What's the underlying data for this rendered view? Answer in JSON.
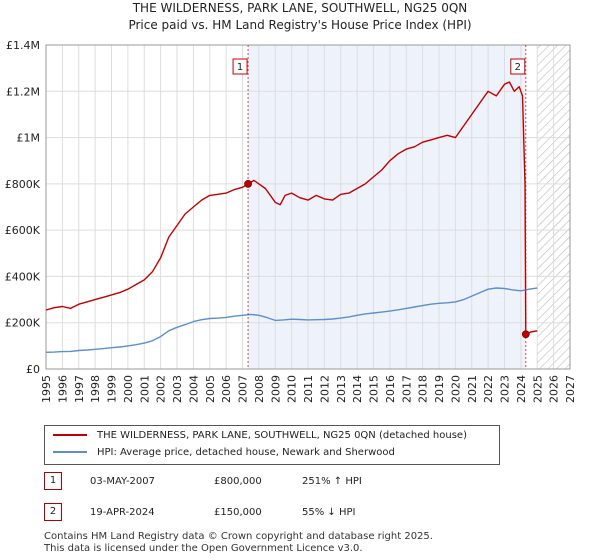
{
  "title_line1": "THE WILDERNESS, PARK LANE, SOUTHWELL, NG25 0QN",
  "title_line2": "Price paid vs. HM Land Registry's House Price Index (HPI)",
  "colors": {
    "property": "#c00000",
    "hpi": "#5b8fcf",
    "shade": "#eef2fb",
    "grid": "#dddddd"
  },
  "chart_data": {
    "type": "line",
    "title": "THE WILDERNESS, PARK LANE, SOUTHWELL, NG25 0QN",
    "subtitle": "Price paid vs. HM Land Registry's House Price Index (HPI)",
    "xlim": [
      1995,
      2027
    ],
    "ylim": [
      0,
      1400000
    ],
    "x_ticks": [
      1995,
      1996,
      1997,
      1998,
      1999,
      2000,
      2001,
      2002,
      2003,
      2004,
      2005,
      2006,
      2007,
      2008,
      2009,
      2010,
      2011,
      2012,
      2013,
      2014,
      2015,
      2016,
      2017,
      2018,
      2019,
      2020,
      2021,
      2022,
      2023,
      2024,
      2025,
      2026,
      2027
    ],
    "y_ticks": [
      {
        "value": 0,
        "label": "£0"
      },
      {
        "value": 200000,
        "label": "£200K"
      },
      {
        "value": 400000,
        "label": "£400K"
      },
      {
        "value": 600000,
        "label": "£600K"
      },
      {
        "value": 800000,
        "label": "£800K"
      },
      {
        "value": 1000000,
        "label": "£1M"
      },
      {
        "value": 1200000,
        "label": "£1.2M"
      },
      {
        "value": 1400000,
        "label": "£1.4M"
      }
    ],
    "grid": true,
    "shaded_region": [
      2007.34,
      2024.3
    ],
    "hatched_region": [
      2025.0,
      2027
    ],
    "series": [
      {
        "name": "THE WILDERNESS, PARK LANE, SOUTHWELL, NG25 0QN (detached house)",
        "x": [
          1995.0,
          1995.5,
          1996.0,
          1996.5,
          1997.0,
          1997.5,
          1998.0,
          1998.5,
          1999.0,
          1999.5,
          2000.0,
          2000.5,
          2001.0,
          2001.5,
          2002.0,
          2002.5,
          2003.0,
          2003.5,
          2004.0,
          2004.5,
          2005.0,
          2005.5,
          2006.0,
          2006.5,
          2007.0,
          2007.34,
          2007.7,
          2008.0,
          2008.4,
          2008.8,
          2009.0,
          2009.3,
          2009.6,
          2010.0,
          2010.5,
          2011.0,
          2011.5,
          2012.0,
          2012.5,
          2013.0,
          2013.5,
          2014.0,
          2014.5,
          2015.0,
          2015.5,
          2016.0,
          2016.5,
          2017.0,
          2017.5,
          2018.0,
          2018.5,
          2019.0,
          2019.5,
          2020.0,
          2020.5,
          2021.0,
          2021.5,
          2022.0,
          2022.5,
          2023.0,
          2023.3,
          2023.6,
          2023.9,
          2024.1,
          2024.25,
          2024.3,
          2024.6,
          2025.0
        ],
        "values": [
          255000,
          265000,
          270000,
          262000,
          280000,
          290000,
          300000,
          310000,
          320000,
          330000,
          345000,
          365000,
          385000,
          420000,
          480000,
          570000,
          620000,
          670000,
          700000,
          730000,
          750000,
          755000,
          760000,
          775000,
          785000,
          800000,
          815000,
          800000,
          780000,
          740000,
          720000,
          710000,
          750000,
          760000,
          740000,
          730000,
          750000,
          735000,
          730000,
          755000,
          760000,
          780000,
          800000,
          830000,
          860000,
          900000,
          930000,
          950000,
          960000,
          980000,
          990000,
          1000000,
          1010000,
          1000000,
          1050000,
          1100000,
          1150000,
          1200000,
          1180000,
          1230000,
          1240000,
          1200000,
          1220000,
          1180000,
          800000,
          150000,
          160000,
          165000
        ]
      },
      {
        "name": "HPI: Average price, detached house, Newark and Sherwood",
        "x": [
          1995.0,
          1995.5,
          1996.0,
          1996.5,
          1997.0,
          1997.5,
          1998.0,
          1998.5,
          1999.0,
          1999.5,
          2000.0,
          2000.5,
          2001.0,
          2001.5,
          2002.0,
          2002.5,
          2003.0,
          2003.5,
          2004.0,
          2004.5,
          2005.0,
          2005.5,
          2006.0,
          2006.5,
          2007.0,
          2007.5,
          2008.0,
          2008.5,
          2009.0,
          2009.5,
          2010.0,
          2010.5,
          2011.0,
          2011.5,
          2012.0,
          2012.5,
          2013.0,
          2013.5,
          2014.0,
          2014.5,
          2015.0,
          2015.5,
          2016.0,
          2016.5,
          2017.0,
          2017.5,
          2018.0,
          2018.5,
          2019.0,
          2019.5,
          2020.0,
          2020.5,
          2021.0,
          2021.5,
          2022.0,
          2022.5,
          2023.0,
          2023.5,
          2024.0,
          2024.5,
          2025.0
        ],
        "values": [
          72000,
          73000,
          75000,
          76000,
          80000,
          82000,
          85000,
          88000,
          92000,
          95000,
          100000,
          105000,
          112000,
          122000,
          140000,
          165000,
          180000,
          192000,
          205000,
          213000,
          218000,
          220000,
          223000,
          228000,
          232000,
          236000,
          232000,
          222000,
          210000,
          212000,
          215000,
          214000,
          212000,
          213000,
          214000,
          216000,
          220000,
          225000,
          232000,
          238000,
          242000,
          246000,
          250000,
          256000,
          262000,
          268000,
          274000,
          280000,
          284000,
          286000,
          290000,
          300000,
          315000,
          330000,
          345000,
          350000,
          348000,
          342000,
          338000,
          345000,
          350000
        ]
      }
    ],
    "annotations": [
      {
        "label": "1",
        "x": 2007.34,
        "value": 800000
      },
      {
        "label": "2",
        "x": 2024.3,
        "value": 150000
      }
    ],
    "xlabel": "",
    "ylabel": ""
  },
  "legend": {
    "property_label": "THE WILDERNESS, PARK LANE, SOUTHWELL, NG25 0QN (detached house)",
    "hpi_label": "HPI: Average price, detached house, Newark and Sherwood"
  },
  "sales": [
    {
      "badge": "1",
      "date": "03-MAY-2007",
      "price": "£800,000",
      "hpi": "251% ↑ HPI"
    },
    {
      "badge": "2",
      "date": "19-APR-2024",
      "price": "£150,000",
      "hpi": "55% ↓ HPI"
    }
  ],
  "footer": {
    "line1": "Contains HM Land Registry data © Crown copyright and database right 2025.",
    "line2": "This data is licensed under the Open Government Licence v3.0."
  }
}
